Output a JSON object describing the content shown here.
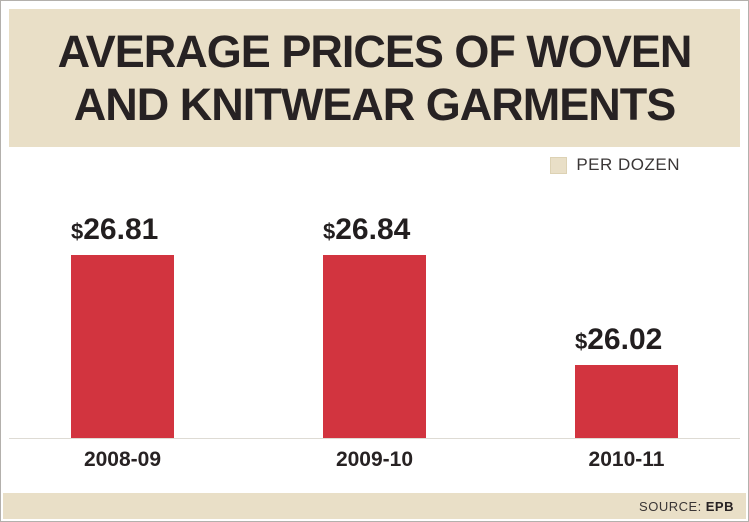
{
  "title": {
    "line1": "AVERAGE PRICES OF WOVEN",
    "line2": "AND KNITWEAR GARMENTS"
  },
  "legend": {
    "label": "PER DOZEN",
    "swatch_color": "#e9dfc7"
  },
  "source": {
    "prefix": "SOURCE:",
    "name": "EPB"
  },
  "colors": {
    "bar": "#d2343f",
    "header_bg": "#e9dfc7",
    "text": "#272223"
  },
  "chart_data": {
    "type": "bar",
    "title": "AVERAGE PRICES OF WOVEN AND KNITWEAR GARMENTS",
    "legend": "PER DOZEN",
    "legend_position": "top-right",
    "categories": [
      "2008-09",
      "2009-10",
      "2010-11"
    ],
    "values": [
      26.81,
      26.84,
      26.02
    ],
    "currency": "$",
    "values_display": [
      "26.81",
      "26.84",
      "26.02"
    ],
    "value_labels": [
      "$26.81",
      "$26.84",
      "$26.02"
    ],
    "xlabel": "",
    "ylabel": "",
    "ylim": [
      25.6,
      26.9
    ],
    "grid": false,
    "source": "EPB"
  }
}
